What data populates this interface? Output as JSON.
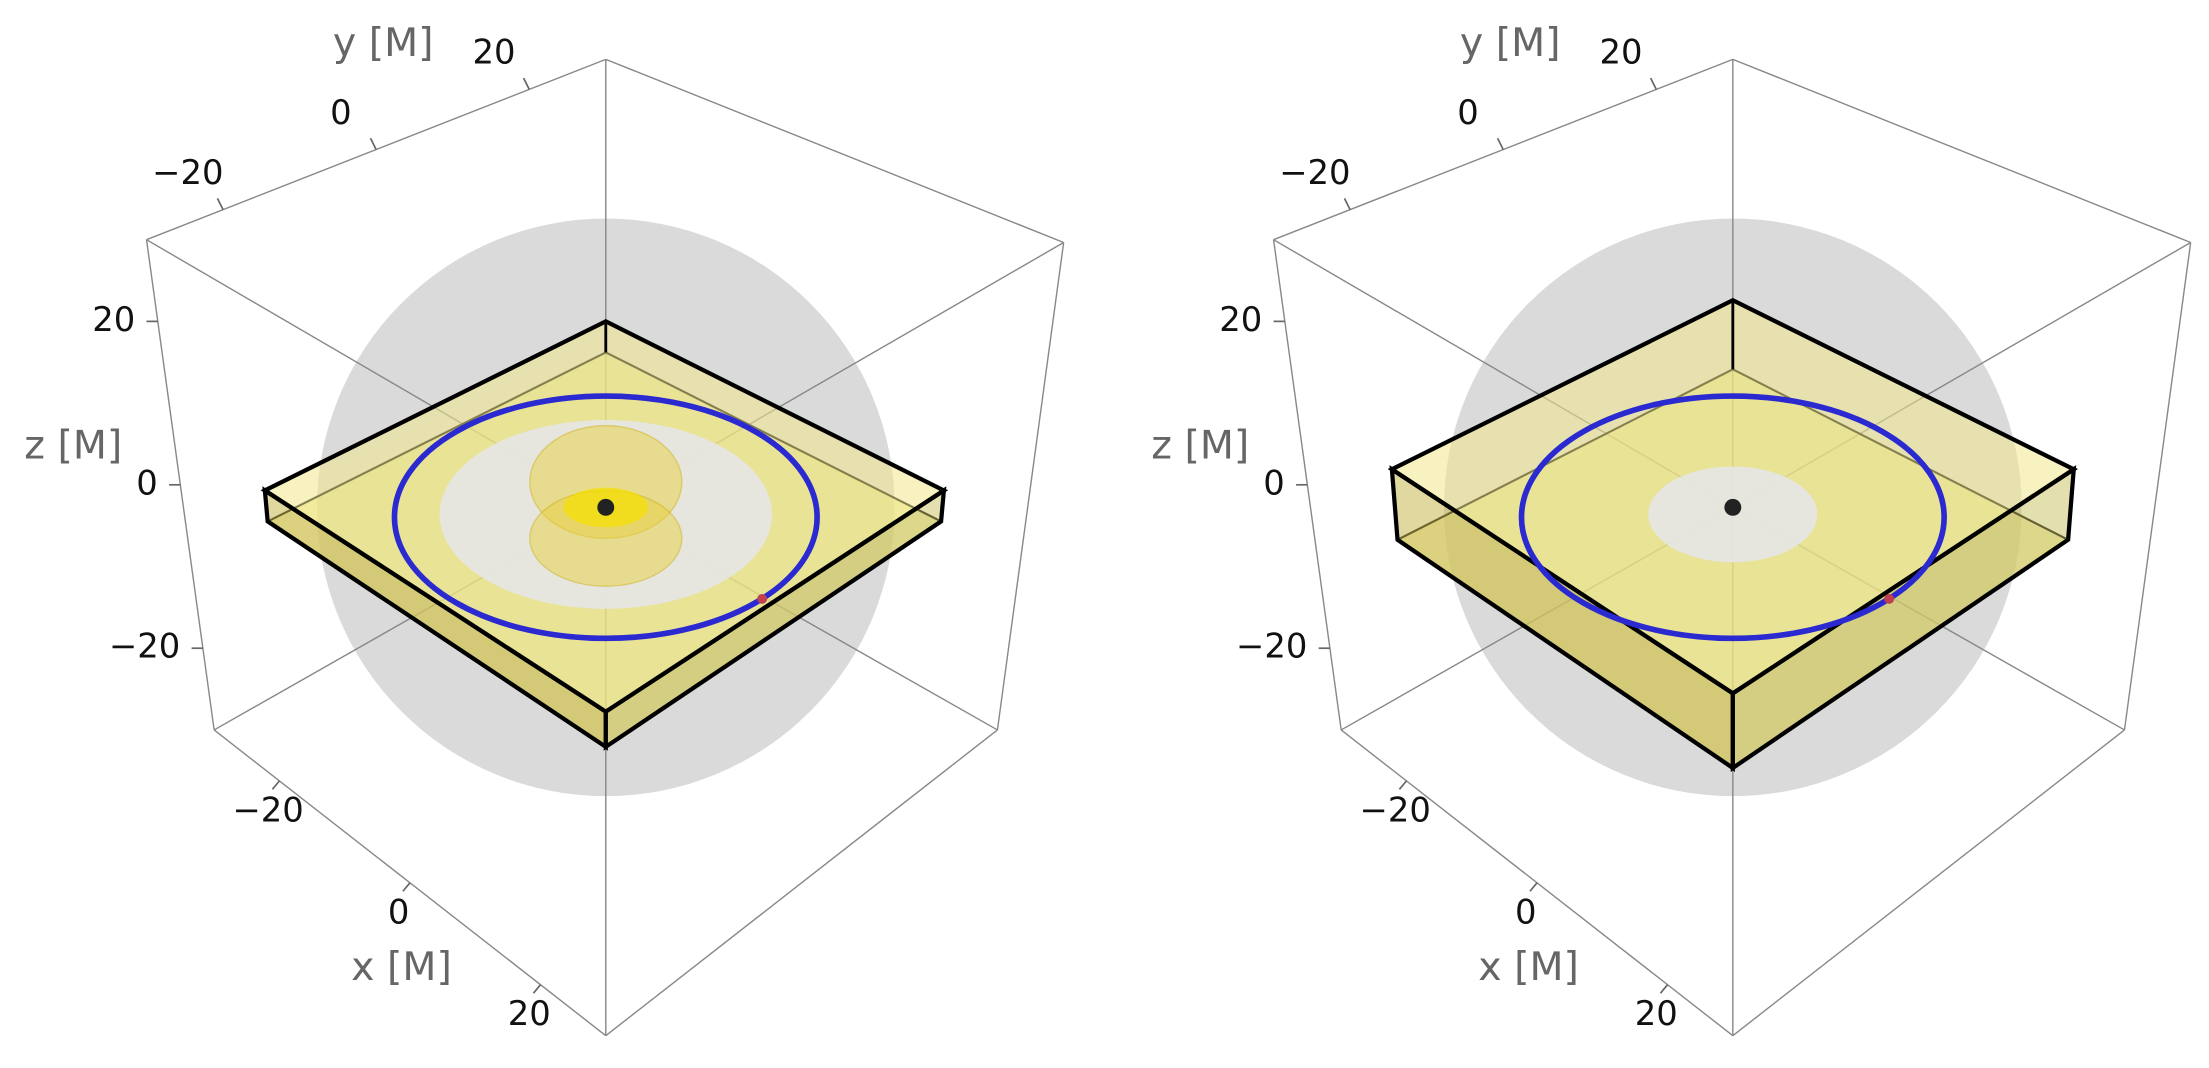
{
  "chart_data": [
    {
      "type": "3d",
      "xlabel": "x [M]",
      "ylabel": "y [M]",
      "zlabel": "z [M]",
      "xlim": [
        -30,
        30
      ],
      "ylim": [
        -30,
        30
      ],
      "zlim": [
        -30,
        30
      ],
      "xticks": [
        {
          "value": -20,
          "label": "−20"
        },
        0,
        20
      ],
      "yticks": [
        {
          "value": -20,
          "label": "−20"
        },
        0,
        20
      ],
      "zticks": [
        {
          "value": -20,
          "label": "−20"
        },
        0,
        20
      ]
    },
    {
      "type": "3d",
      "xlabel": "x [M]",
      "ylabel": "y [M]",
      "zlabel": "z [M]",
      "xlim": [
        -30,
        30
      ],
      "ylim": [
        -30,
        30
      ],
      "zlim": [
        -30,
        30
      ],
      "xticks": [
        {
          "value": -20,
          "label": "−20"
        },
        0,
        20
      ],
      "yticks": [
        {
          "value": -20,
          "label": "−20"
        },
        0,
        20
      ],
      "zticks": [
        {
          "value": -20,
          "label": "−20"
        },
        0,
        20
      ]
    }
  ]
}
